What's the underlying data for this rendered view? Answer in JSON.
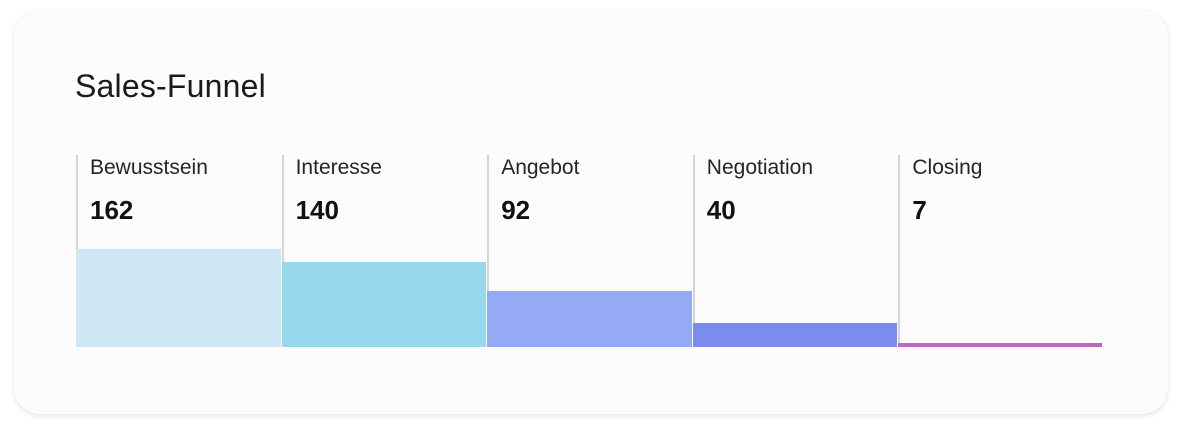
{
  "card": {
    "title": "Sales-Funnel"
  },
  "chart_data": {
    "type": "bar",
    "title": "Sales-Funnel",
    "categories": [
      "Bewusstsein",
      "Interesse",
      "Angebot",
      "Negotiation",
      "Closing"
    ],
    "values": [
      162,
      140,
      92,
      40,
      7
    ],
    "colors": [
      "#cde7f4",
      "#97d7ee",
      "#95aaf4",
      "#7b8bee",
      "#b96bbd"
    ],
    "ylim": [
      0,
      162
    ],
    "grid": false,
    "xlabel": "",
    "ylabel": ""
  }
}
